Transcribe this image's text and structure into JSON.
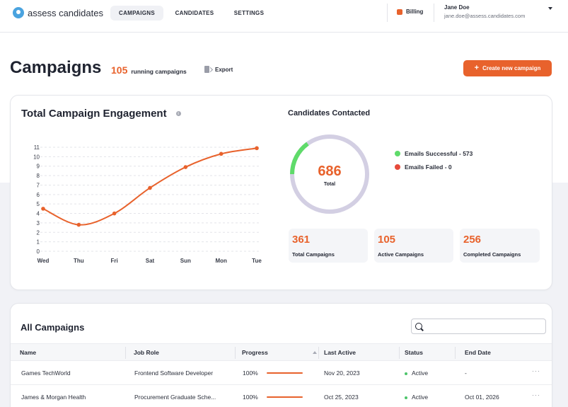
{
  "colors": {
    "accent": "#e8622c",
    "success": "#5fdb6a",
    "failed": "#e64a3b",
    "ring": "#d3cfe3"
  },
  "nav": {
    "logo_text": "assess candidates",
    "tabs": [
      "CAMPAIGNS",
      "CANDIDATES",
      "SETTINGS"
    ],
    "active_tab": "CAMPAIGNS",
    "billing": "Billing",
    "user_name": "Jane Doe",
    "user_email": "jane.doe@assess.candidates.com"
  },
  "header": {
    "title": "Campaigns",
    "running_count": "105",
    "running_label": "running campaigns",
    "export_label": "Export",
    "create_label": "Create new campaign"
  },
  "engagement": {
    "title": "Total Campaign Engagement",
    "info_icon": "i"
  },
  "chart_data": {
    "type": "line",
    "title": "Total Campaign Engagement",
    "categories": [
      "Wed",
      "Thu",
      "Fri",
      "Sat",
      "Sun",
      "Mon",
      "Tue"
    ],
    "series": [
      {
        "values": [
          4.5,
          2.8,
          4,
          6.7,
          8.9,
          10.3,
          10.9
        ]
      }
    ],
    "y_ticks": [
      "0",
      "1",
      "2",
      "3",
      "4",
      "5",
      "6",
      "7",
      "8",
      "9",
      "10",
      "11"
    ],
    "ylim": [
      0,
      11
    ],
    "grid": true,
    "smooth": true
  },
  "contacted": {
    "title": "Candidates Contacted",
    "total": "686",
    "total_label": "Total",
    "successful_fraction": 0.15,
    "legend": [
      {
        "label": "Emails Successful - 573",
        "color": "#5fdb6a"
      },
      {
        "label": "Emails Failed - 0",
        "color": "#e64a3b"
      }
    ],
    "stats": [
      {
        "value": "361",
        "label": "Total Campaigns"
      },
      {
        "value": "105",
        "label": "Active Campaigns"
      },
      {
        "value": "256",
        "label": "Completed Campaigns"
      }
    ]
  },
  "table": {
    "title": "All Campaigns",
    "columns": [
      "Name",
      "Job Role",
      "Progress",
      "Last Active",
      "Status",
      "End Date"
    ],
    "rows": [
      {
        "name": "Games TechWorld",
        "role": "Frontend Software Developer",
        "progress": "100%",
        "progress_value": 1.0,
        "last_active": "Nov 20, 2023",
        "status": "Active",
        "end_date": "-"
      },
      {
        "name": "James & Morgan Health",
        "role": "Procurement Graduate Sche...",
        "progress": "100%",
        "progress_value": 1.0,
        "last_active": "Oct 25, 2023",
        "status": "Active",
        "end_date": "Oct 01, 2026"
      }
    ],
    "more_glyph": "···"
  }
}
